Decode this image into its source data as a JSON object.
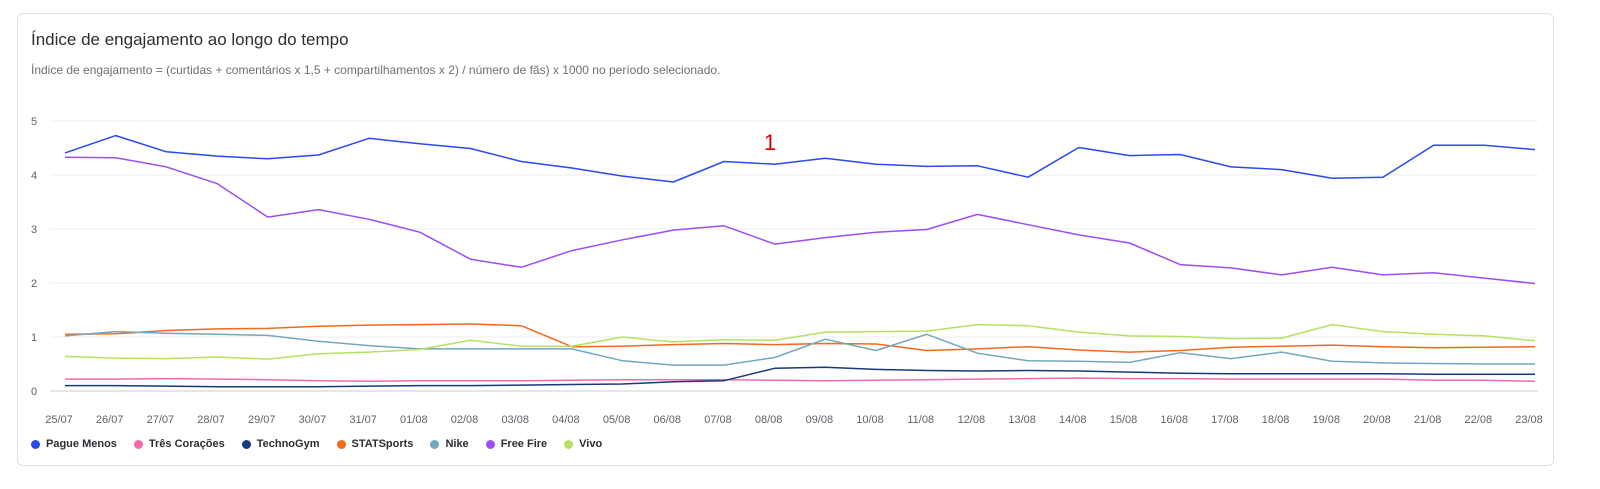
{
  "chart_data": {
    "type": "line",
    "title": "Índice de engajamento ao longo do tempo",
    "subtitle": "Índice de engajamento = (curtidas + comentários x 1,5 + compartilhamentos x 2) / número de fãs) x 1000 no período selecionado.",
    "annotation": "1",
    "ylim": [
      0,
      5
    ],
    "yticks": [
      "0",
      "1",
      "2",
      "3",
      "4",
      "5"
    ],
    "grid": true,
    "legend_position": "bottom-left",
    "categories": [
      "25/07",
      "26/07",
      "27/07",
      "28/07",
      "29/07",
      "30/07",
      "31/07",
      "01/08",
      "02/08",
      "03/08",
      "04/08",
      "05/08",
      "06/08",
      "07/08",
      "08/08",
      "09/08",
      "10/08",
      "11/08",
      "12/08",
      "13/08",
      "14/08",
      "15/08",
      "16/08",
      "17/08",
      "18/08",
      "19/08",
      "20/08",
      "21/08",
      "22/08",
      "23/08"
    ],
    "series": [
      {
        "name": "Pague Menos",
        "color": "#2a49f0",
        "values": [
          4.41,
          4.73,
          4.43,
          4.35,
          4.3,
          4.37,
          4.68,
          4.58,
          4.49,
          4.25,
          4.13,
          3.98,
          3.87,
          4.25,
          4.2,
          4.31,
          4.2,
          4.16,
          4.17,
          3.96,
          4.51,
          4.36,
          4.38,
          4.15,
          4.1,
          3.94,
          3.96,
          4.55,
          4.55,
          4.47
        ]
      },
      {
        "name": "Três Corações",
        "color": "#f06aa8",
        "values": [
          0.22,
          0.22,
          0.23,
          0.22,
          0.21,
          0.19,
          0.18,
          0.19,
          0.19,
          0.19,
          0.2,
          0.21,
          0.21,
          0.21,
          0.2,
          0.19,
          0.2,
          0.21,
          0.22,
          0.23,
          0.24,
          0.23,
          0.23,
          0.22,
          0.22,
          0.22,
          0.22,
          0.2,
          0.2,
          0.18
        ]
      },
      {
        "name": "TechnoGym",
        "color": "#173a79",
        "values": [
          0.1,
          0.1,
          0.09,
          0.08,
          0.08,
          0.08,
          0.09,
          0.1,
          0.1,
          0.11,
          0.12,
          0.13,
          0.17,
          0.19,
          0.42,
          0.44,
          0.4,
          0.38,
          0.37,
          0.38,
          0.37,
          0.35,
          0.33,
          0.32,
          0.32,
          0.32,
          0.32,
          0.31,
          0.31,
          0.31
        ]
      },
      {
        "name": "STATSports",
        "color": "#f26a1b",
        "values": [
          1.05,
          1.06,
          1.12,
          1.15,
          1.16,
          1.2,
          1.22,
          1.23,
          1.24,
          1.21,
          0.82,
          0.83,
          0.86,
          0.88,
          0.86,
          0.88,
          0.87,
          0.75,
          0.78,
          0.82,
          0.76,
          0.72,
          0.75,
          0.81,
          0.83,
          0.85,
          0.82,
          0.8,
          0.81,
          0.82
        ]
      },
      {
        "name": "Nike",
        "color": "#72a7bd",
        "values": [
          1.02,
          1.1,
          1.07,
          1.05,
          1.03,
          0.92,
          0.84,
          0.78,
          0.78,
          0.78,
          0.78,
          0.56,
          0.48,
          0.48,
          0.62,
          0.96,
          0.75,
          1.05,
          0.7,
          0.56,
          0.55,
          0.53,
          0.71,
          0.6,
          0.72,
          0.55,
          0.52,
          0.51,
          0.5,
          0.5
        ]
      },
      {
        "name": "Free Fire",
        "color": "#9b4dfa",
        "values": [
          4.33,
          4.32,
          4.15,
          3.84,
          3.22,
          3.36,
          3.18,
          2.94,
          2.44,
          2.29,
          2.6,
          2.8,
          2.98,
          3.06,
          2.72,
          2.84,
          2.94,
          2.99,
          3.27,
          3.08,
          2.89,
          2.74,
          2.34,
          2.28,
          2.15,
          2.29,
          2.15,
          2.19,
          2.09,
          1.99
        ]
      },
      {
        "name": "Vivo",
        "color": "#b5e061",
        "values": [
          0.64,
          0.61,
          0.6,
          0.63,
          0.59,
          0.69,
          0.72,
          0.77,
          0.94,
          0.83,
          0.83,
          1.0,
          0.91,
          0.95,
          0.94,
          1.09,
          1.1,
          1.11,
          1.23,
          1.21,
          1.09,
          1.02,
          1.01,
          0.97,
          0.98,
          1.23,
          1.1,
          1.05,
          1.02,
          0.93
        ]
      }
    ]
  }
}
